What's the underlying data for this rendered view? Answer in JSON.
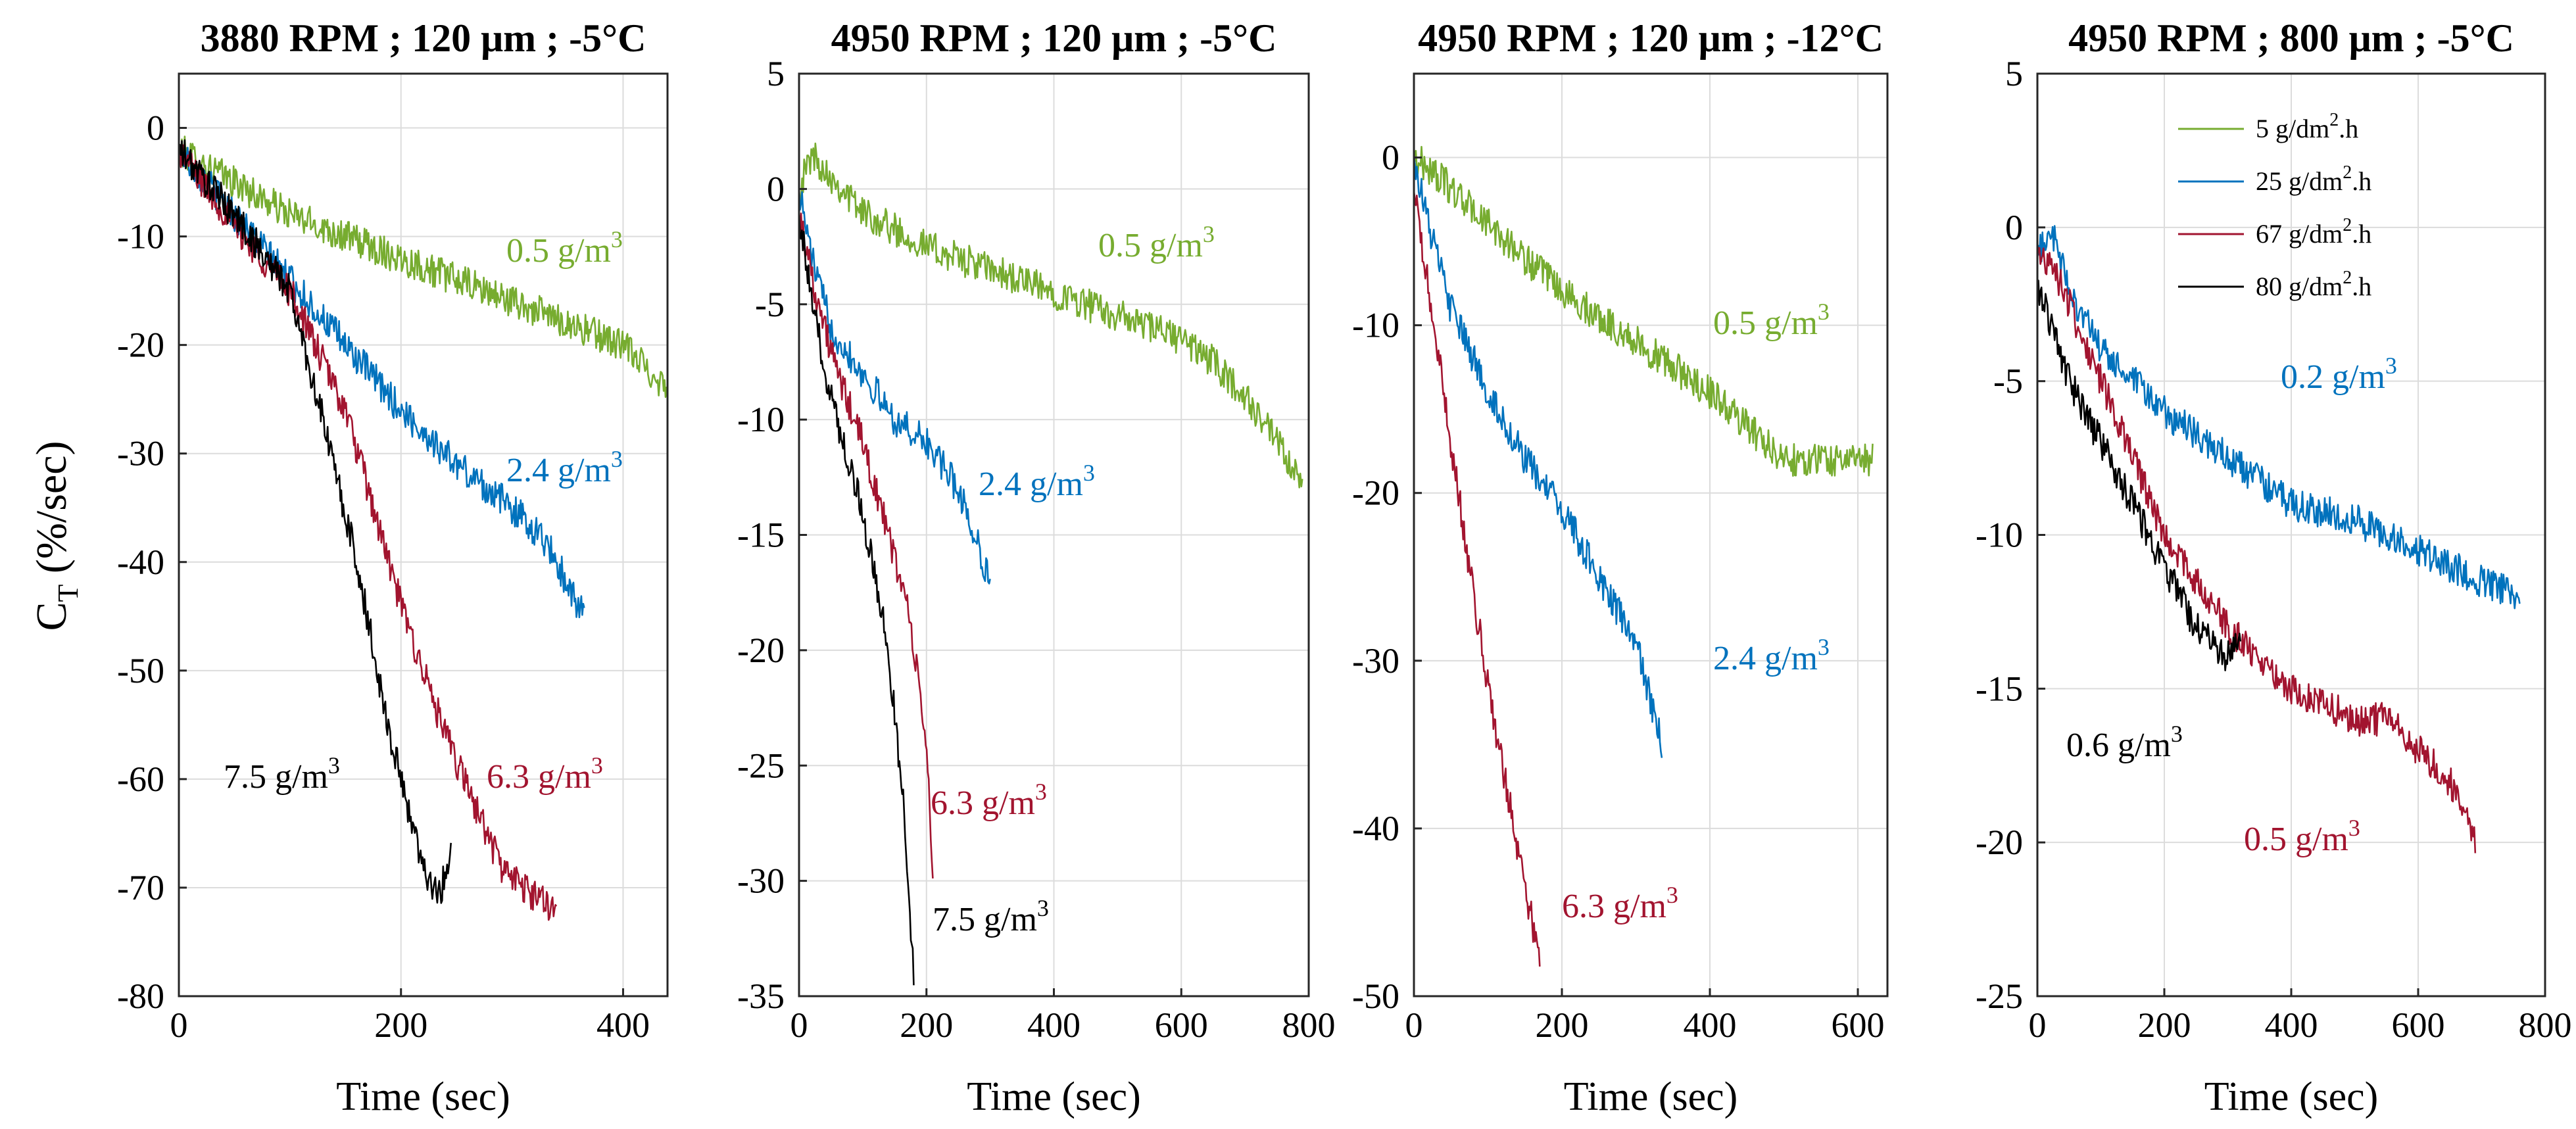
{
  "chart_data": [
    {
      "type": "line",
      "title": "3880 RPM ; 120 μm ; -5°C",
      "xlabel": "Time (sec)",
      "ylabel": "C_T (%/sec)",
      "xlim": [
        0,
        440
      ],
      "ylim": [
        -80,
        5
      ],
      "xticks": [
        0,
        200,
        400
      ],
      "yticks": [
        0,
        -10,
        -20,
        -30,
        -40,
        -50,
        -60,
        -70,
        -80
      ],
      "grid": true,
      "series": [
        {
          "name": "5 g/dm2.h",
          "label": "0.5 g/m3",
          "color": "#77ac30",
          "x": [
            0,
            50,
            100,
            150,
            200,
            250,
            300,
            350,
            400,
            440
          ],
          "y": [
            -2,
            -5,
            -8,
            -10,
            -12,
            -14,
            -16,
            -18,
            -20,
            -24
          ]
        },
        {
          "name": "25 g/dm2.h",
          "label": "2.4 g/m3",
          "color": "#0072bd",
          "x": [
            0,
            50,
            100,
            150,
            200,
            250,
            300,
            330,
            365
          ],
          "y": [
            -2,
            -8,
            -14,
            -20,
            -26,
            -31,
            -35,
            -38,
            -45
          ]
        },
        {
          "name": "67 g/dm2.h",
          "label": "6.3 g/m3",
          "color": "#a2142f",
          "x": [
            0,
            50,
            100,
            150,
            200,
            240,
            290,
            310,
            340
          ],
          "y": [
            -2,
            -9,
            -15,
            -26,
            -44,
            -56,
            -68,
            -70,
            -72
          ]
        },
        {
          "name": "80 g/dm2.h",
          "label": "7.5 g/m3",
          "color": "#000000",
          "x": [
            0,
            50,
            100,
            130,
            160,
            190,
            220,
            235,
            245
          ],
          "y": [
            -2,
            -8,
            -15,
            -27,
            -40,
            -56,
            -68,
            -71,
            -66
          ]
        }
      ],
      "annotations": [
        {
          "text": "0.5 g/m",
          "sup": "3",
          "color": "#77ac30"
        },
        {
          "text": "2.4 g/m",
          "sup": "3",
          "color": "#0072bd"
        },
        {
          "text": "6.3 g/m",
          "sup": "3",
          "color": "#a2142f"
        },
        {
          "text": "7.5 g/m",
          "sup": "3",
          "color": "#000000"
        }
      ]
    },
    {
      "type": "line",
      "title": "4950 RPM ; 120 μm ; -5°C",
      "xlabel": "Time (sec)",
      "ylabel": "",
      "xlim": [
        0,
        800
      ],
      "ylim": [
        -35,
        5
      ],
      "xticks": [
        0,
        200,
        400,
        600,
        800
      ],
      "yticks": [
        5,
        0,
        -5,
        -10,
        -15,
        -20,
        -25,
        -30,
        -35
      ],
      "grid": true,
      "series": [
        {
          "name": "5 g/dm2.h",
          "label": "0.5 g/m3",
          "color": "#77ac30",
          "x": [
            0,
            20,
            100,
            200,
            300,
            400,
            500,
            600,
            650,
            700,
            750,
            790
          ],
          "y": [
            0,
            1.5,
            -1,
            -2.5,
            -3.5,
            -4.5,
            -5.5,
            -6.5,
            -7.5,
            -9,
            -11,
            -13
          ]
        },
        {
          "name": "25 g/dm2.h",
          "label": "2.4 g/m3",
          "color": "#0072bd",
          "x": [
            0,
            20,
            50,
            100,
            150,
            200,
            250,
            300
          ],
          "y": [
            0,
            -3,
            -6,
            -8,
            -10,
            -11,
            -13,
            -17
          ]
        },
        {
          "name": "67 g/dm2.h",
          "label": "6.3 g/m3",
          "color": "#a2142f",
          "x": [
            0,
            30,
            60,
            100,
            140,
            170,
            200,
            210
          ],
          "y": [
            -1,
            -5,
            -8,
            -11,
            -15,
            -18,
            -24,
            -30
          ]
        },
        {
          "name": "80 g/dm2.h",
          "label": "7.5 g/m3",
          "color": "#000000",
          "x": [
            0,
            20,
            50,
            100,
            140,
            165,
            180
          ],
          "y": [
            -1,
            -5,
            -9,
            -14,
            -20,
            -27,
            -34
          ]
        }
      ],
      "annotations": [
        {
          "text": "0.5 g/m",
          "sup": "3",
          "color": "#77ac30"
        },
        {
          "text": "2.4 g/m",
          "sup": "3",
          "color": "#0072bd"
        },
        {
          "text": "6.3 g/m",
          "sup": "3",
          "color": "#a2142f"
        },
        {
          "text": "7.5 g/m",
          "sup": "3",
          "color": "#000000"
        }
      ]
    },
    {
      "type": "line",
      "title": "4950 RPM ; 120 μm ; -12°C",
      "xlabel": "Time (sec)",
      "ylabel": "",
      "xlim": [
        0,
        640
      ],
      "ylim": [
        -50,
        5
      ],
      "xticks": [
        0,
        200,
        400,
        600
      ],
      "yticks": [
        0,
        -10,
        -20,
        -30,
        -40,
        -50
      ],
      "grid": true,
      "series": [
        {
          "name": "5 g/dm2.h",
          "label": "0.5 g/m3",
          "color": "#77ac30",
          "x": [
            0,
            30,
            100,
            200,
            300,
            400,
            450,
            500,
            550,
            620
          ],
          "y": [
            0,
            -1,
            -4,
            -8,
            -11,
            -14,
            -16,
            -18,
            -18,
            -18
          ]
        },
        {
          "name": "25 g/dm2.h",
          "label": "2.4 g/m3",
          "color": "#0072bd",
          "x": [
            0,
            20,
            50,
            100,
            150,
            200,
            250,
            300,
            335
          ],
          "y": [
            0,
            -4,
            -9,
            -14,
            -18,
            -21,
            -25,
            -29,
            -35
          ]
        },
        {
          "name": "67 g/dm2.h",
          "label": "6.3 g/m3",
          "color": "#a2142f",
          "x": [
            0,
            20,
            50,
            80,
            110,
            140,
            170
          ],
          "y": [
            -2,
            -8,
            -17,
            -26,
            -34,
            -41,
            -48
          ]
        }
      ],
      "annotations": [
        {
          "text": "0.5 g/m",
          "sup": "3",
          "color": "#77ac30"
        },
        {
          "text": "2.4 g/m",
          "sup": "3",
          "color": "#0072bd"
        },
        {
          "text": "6.3 g/m",
          "sup": "3",
          "color": "#a2142f"
        }
      ]
    },
    {
      "type": "line",
      "title": "4950 RPM ; 800 μm ; -5°C",
      "xlabel": "Time (sec)",
      "ylabel": "",
      "xlim": [
        0,
        800
      ],
      "ylim": [
        -25,
        5
      ],
      "xticks": [
        0,
        200,
        400,
        600,
        800
      ],
      "yticks": [
        5,
        0,
        -5,
        -10,
        -15,
        -20,
        -25
      ],
      "grid": true,
      "series": [
        {
          "name": "25 g/dm2.h",
          "label": "0.2 g/m3",
          "color": "#0072bd",
          "x": [
            0,
            20,
            50,
            100,
            200,
            300,
            400,
            500,
            600,
            700,
            760
          ],
          "y": [
            -1,
            0,
            -2,
            -4,
            -6,
            -7.5,
            -9,
            -9.5,
            -10.5,
            -11.5,
            -12
          ]
        },
        {
          "name": "67 g/dm2.h",
          "label": "0.5 g/m3",
          "color": "#a2142f",
          "x": [
            0,
            20,
            100,
            200,
            300,
            400,
            500,
            560,
            600,
            650,
            690
          ],
          "y": [
            -1,
            -1,
            -5,
            -10,
            -13,
            -15,
            -16,
            -16,
            -17,
            -18,
            -20
          ]
        },
        {
          "name": "80 g/dm2.h",
          "label": "0.6 g/m3",
          "color": "#000000",
          "x": [
            0,
            20,
            50,
            100,
            150,
            200,
            250,
            300,
            320
          ],
          "y": [
            -2,
            -3,
            -5,
            -7,
            -9,
            -11,
            -13,
            -14,
            -13
          ]
        }
      ],
      "annotations": [
        {
          "text": "0.2 g/m",
          "sup": "3",
          "color": "#0072bd"
        },
        {
          "text": "0.5 g/m",
          "sup": "3",
          "color": "#a2142f"
        },
        {
          "text": "0.6 g/m",
          "sup": "3",
          "color": "#000000"
        }
      ],
      "legend": {
        "placement": "top-right",
        "entries": [
          {
            "text": "5 g/dm",
            "sup": "2",
            "suffix": ".h",
            "color": "#77ac30"
          },
          {
            "text": "25 g/dm",
            "sup": "2",
            "suffix": ".h",
            "color": "#0072bd"
          },
          {
            "text": "67 g/dm",
            "sup": "2",
            "suffix": ".h",
            "color": "#a2142f"
          },
          {
            "text": "80 g/dm",
            "sup": "2",
            "suffix": ".h",
            "color": "#000000"
          }
        ]
      }
    }
  ],
  "ylabel_main": {
    "base": "C",
    "sub": "T",
    "rest": " (%/sec)"
  }
}
